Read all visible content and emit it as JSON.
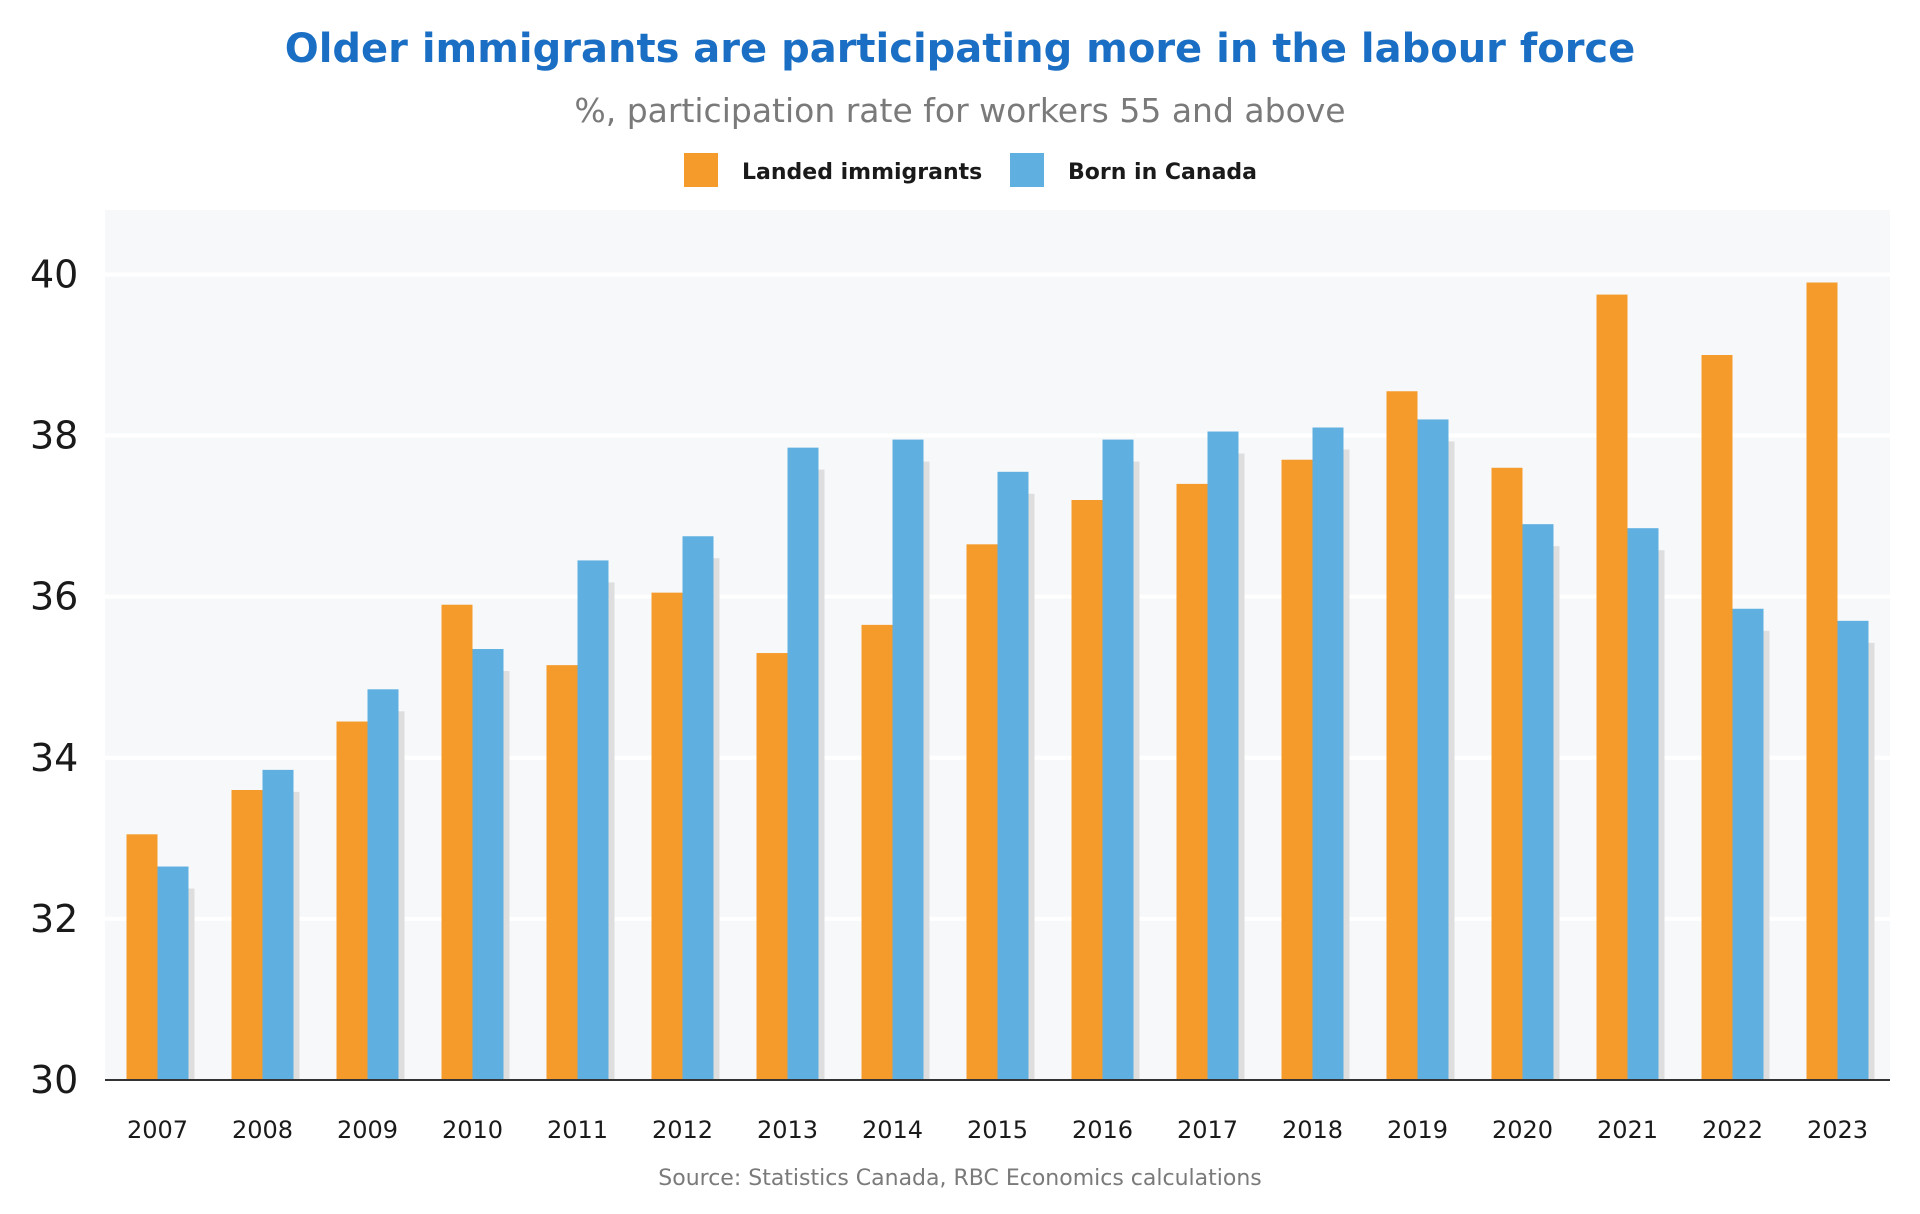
{
  "chart_data": {
    "type": "bar",
    "title": "Older immigrants are participating more in the labour force",
    "subtitle": "%, participation rate for workers 55 and above",
    "source": "Source: Statistics Canada, RBC Economics calculations",
    "categories": [
      "2007",
      "2008",
      "2009",
      "2010",
      "2011",
      "2012",
      "2013",
      "2014",
      "2015",
      "2016",
      "2017",
      "2018",
      "2019",
      "2020",
      "2021",
      "2022",
      "2023"
    ],
    "series": [
      {
        "name": "Landed immigrants",
        "color": "#f59b2b",
        "values": [
          33.05,
          33.6,
          34.45,
          35.9,
          35.15,
          36.05,
          35.3,
          35.65,
          36.65,
          37.2,
          37.4,
          37.7,
          38.55,
          37.6,
          39.75,
          39.0,
          39.9
        ]
      },
      {
        "name": "Born in Canada",
        "color": "#5fafe0",
        "values": [
          32.65,
          33.85,
          34.85,
          35.35,
          36.45,
          36.75,
          37.85,
          37.95,
          37.55,
          37.95,
          38.05,
          38.1,
          38.2,
          36.9,
          36.85,
          35.85,
          35.7
        ]
      }
    ],
    "yticks": [
      "30",
      "32",
      "34",
      "36",
      "38",
      "40"
    ],
    "ylim": [
      30,
      40.8
    ],
    "legend_position": "top-center",
    "grid": true,
    "colors": {
      "plot_bg": "#f7f8fa",
      "grid": "#ffffff",
      "axis": "#333333",
      "shadow": "#dedede"
    }
  }
}
